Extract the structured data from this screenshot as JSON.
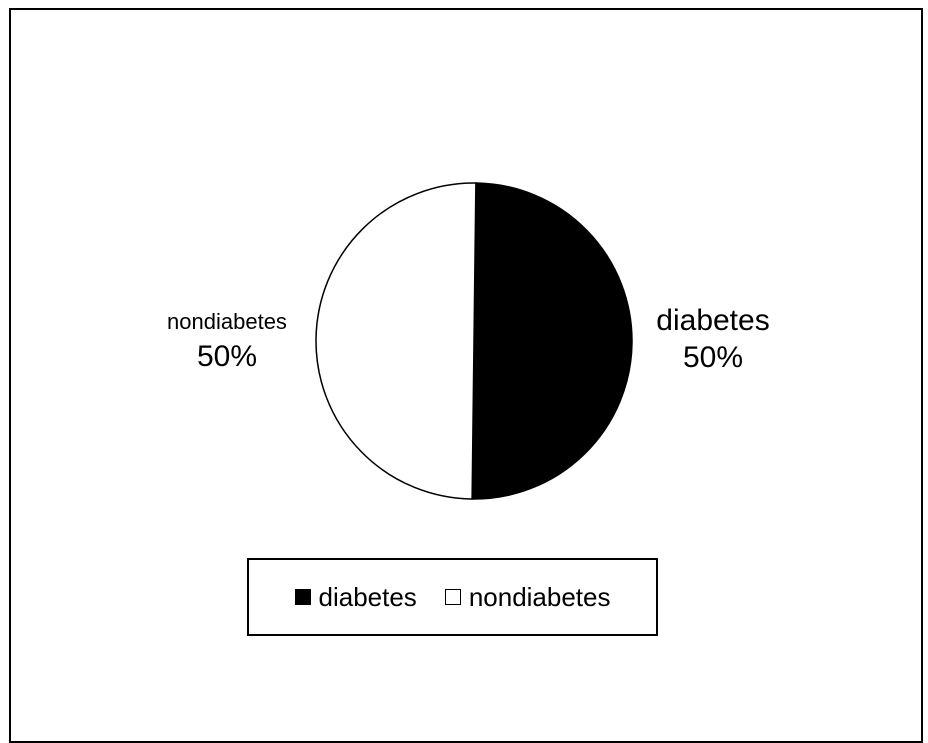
{
  "chart_data": {
    "type": "pie",
    "slices": [
      {
        "label": "diabetes",
        "value": 50,
        "percent_label": "50%",
        "color": "#000000"
      },
      {
        "label": "nondiabetes",
        "value": 50,
        "percent_label": "50%",
        "color": "#ffffff"
      }
    ],
    "legend": {
      "placement": "bottom",
      "entries": [
        "diabetes",
        "nondiabetes"
      ]
    }
  }
}
